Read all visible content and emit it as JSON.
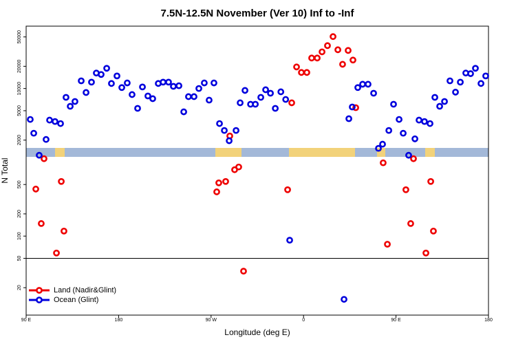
{
  "chart_data": {
    "type": "scatter",
    "title": "7.5N-12.5N November (Ver 10)   Inf to -Inf",
    "x_label": "Longitude (deg E)",
    "y_label": "N Total",
    "log_y": true,
    "legend": "lower left",
    "xlim": [
      90,
      540
    ],
    "xticks": [
      {
        "value": 90,
        "label": "90 E"
      },
      {
        "value": 180,
        "label": "180"
      },
      {
        "value": 270,
        "label": "90 W"
      },
      {
        "value": 360,
        "label": "0"
      },
      {
        "value": 450,
        "label": "90 E"
      },
      {
        "value": 540,
        "label": "180"
      }
    ],
    "ylim": [
      8.5,
      70000
    ],
    "yticks": [
      20,
      50,
      100,
      200,
      500,
      2000,
      5000,
      10000,
      20000,
      50000
    ],
    "hline": 50,
    "series": [
      {
        "name": "Land (Nadir&Glint)",
        "color": "#ee0000",
        "x": [
          99.4,
          104.7,
          107.4,
          119.5,
          124.2,
          126.8,
          275.5,
          277.5,
          284.2,
          288.2,
          292.9,
          296.9,
          301.6,
          344.5,
          348.5,
          353.2,
          357.9,
          363.2,
          367.9,
          373.3,
          378.0,
          383.3,
          388.7,
          393.4,
          398.0,
          403.4,
          408.1,
          410.8,
          437.5,
          441.6,
          459.6,
          464.3,
          467.0,
          479.1,
          483.8,
          486.4
        ],
        "values": [
          434,
          148,
          1119,
          59,
          550,
          117,
          398,
          527,
          550,
          2275,
          793,
          864,
          33.5,
          425,
          6400,
          19600,
          16500,
          16500,
          25900,
          25900,
          31400,
          38100,
          50500,
          33500,
          21300,
          32800,
          24300,
          5500,
          984,
          77.6,
          425,
          148,
          1119,
          59,
          550,
          117
        ]
      },
      {
        "name": "Ocean (Glint)",
        "color": "#0000dd",
        "x": [
          94.0,
          97.4,
          102.7,
          109.4,
          112.8,
          118.1,
          123.5,
          128.8,
          132.9,
          137.5,
          143.6,
          148.3,
          153.6,
          158.3,
          163.0,
          168.4,
          173.0,
          178.4,
          183.1,
          188.4,
          193.1,
          198.5,
          203.2,
          208.5,
          213.2,
          218.6,
          223.3,
          228.6,
          233.3,
          238.7,
          243.4,
          248.0,
          253.4,
          258.1,
          263.4,
          268.1,
          272.8,
          278.2,
          282.9,
          287.6,
          294.3,
          298.3,
          303.0,
          308.4,
          313.1,
          318.4,
          323.1,
          327.8,
          332.5,
          337.9,
          342.6,
          346.5,
          399.4,
          404.1,
          407.4,
          412.8,
          417.5,
          422.8,
          428.2,
          432.9,
          436.9,
          443.0,
          447.6,
          453.0,
          457.0,
          462.3,
          468.4,
          472.4,
          477.7,
          483.1,
          487.8,
          492.5,
          497.2,
          502.5,
          507.9,
          512.6,
          517.9,
          522.6,
          527.3,
          532.7,
          537.3
        ],
        "values": [
          3810,
          2477,
          1245,
          2040,
          3730,
          3570,
          3350,
          7590,
          5740,
          6670,
          12700,
          8830,
          12200,
          16200,
          15500,
          18800,
          11700,
          14800,
          10300,
          11900,
          8280,
          5380,
          10500,
          7920,
          7280,
          11700,
          12200,
          12200,
          10700,
          10900,
          4830,
          7760,
          7760,
          10000,
          11900,
          6960,
          11900,
          3350,
          2700,
          1960,
          2700,
          6400,
          9420,
          6120,
          6120,
          7590,
          9620,
          8630,
          5380,
          9020,
          7110,
          88,
          13.9,
          3900,
          5620,
          10300,
          11430,
          11430,
          8630,
          1545,
          1760,
          2700,
          6120,
          3810,
          2477,
          1245,
          2080,
          3730,
          3570,
          3350,
          7590,
          5740,
          6670,
          12700,
          8930,
          12200,
          16200,
          15900,
          18800,
          11700,
          14800
        ]
      }
    ]
  }
}
